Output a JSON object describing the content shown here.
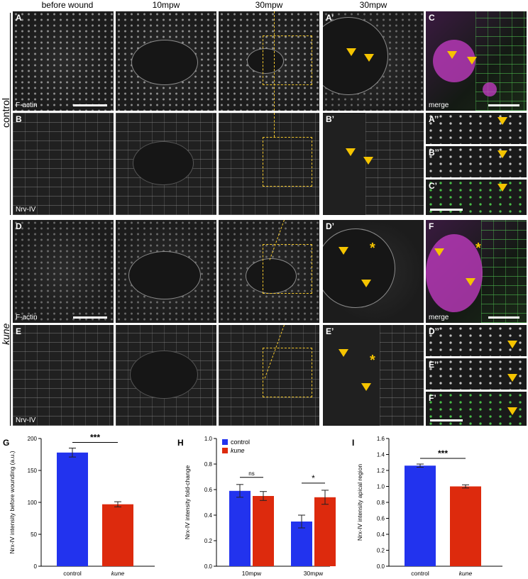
{
  "column_headers": [
    "before wound",
    "10mpw",
    "30mpw",
    "30mpw"
  ],
  "row_groups": [
    "control",
    "kune"
  ],
  "panels": {
    "A": "A",
    "A_prime": "A’",
    "B": "B",
    "B_prime": "B’",
    "C": "C",
    "A_dprime": "A’’",
    "B_dprime": "B’’",
    "C_prime": "C’",
    "D": "D",
    "D_prime": "D’",
    "E": "E",
    "E_prime": "E’",
    "F": "F",
    "D_dprime": "D’’",
    "E_dprime": "E’’",
    "F_prime": "F’"
  },
  "stains": {
    "factin": "F-actin",
    "nrv": "Nrv-IV",
    "merge": "merge"
  },
  "colors": {
    "control": "#2233ee",
    "kune": "#dd2a0d",
    "annotation": "#f5c400",
    "green": "#4fd44f",
    "magenta": "#c63cc6"
  },
  "chart_data": [
    {
      "panel": "G",
      "type": "bar",
      "categories": [
        "control",
        "kune"
      ],
      "values": [
        178,
        97
      ],
      "errors": [
        7,
        4
      ],
      "ylabel": "Nrx-IV intensity before wounding (a.u.)",
      "ylim": [
        0,
        200
      ],
      "yticks": [
        "0",
        "50",
        "100",
        "150",
        "200"
      ],
      "significance": "***"
    },
    {
      "panel": "H",
      "type": "bar",
      "categories": [
        "10mpw",
        "30mpw"
      ],
      "series": [
        {
          "name": "control",
          "values": [
            0.59,
            0.35
          ],
          "errors": [
            0.05,
            0.05
          ]
        },
        {
          "name": "kune",
          "values": [
            0.55,
            0.54
          ],
          "errors": [
            0.035,
            0.055
          ]
        }
      ],
      "ylabel": "Nrx-IV intensity fold-change",
      "ylim": [
        0,
        1.0
      ],
      "yticks": [
        "0.0",
        "0.2",
        "0.4",
        "0.6",
        "0.8",
        "1.0"
      ],
      "significance": [
        "ns",
        "*"
      ],
      "legend": "top-left"
    },
    {
      "panel": "I",
      "type": "bar",
      "categories": [
        "control",
        "kune"
      ],
      "values": [
        1.26,
        1.0
      ],
      "errors": [
        0.02,
        0.02
      ],
      "ylabel": "Nrx-IV intensity apical region",
      "ylim": [
        0,
        1.6
      ],
      "yticks": [
        "0.0",
        "0.2",
        "0.4",
        "0.6",
        "0.8",
        "1.0",
        "1.2",
        "1.4",
        "1.6"
      ],
      "significance": "***"
    }
  ]
}
